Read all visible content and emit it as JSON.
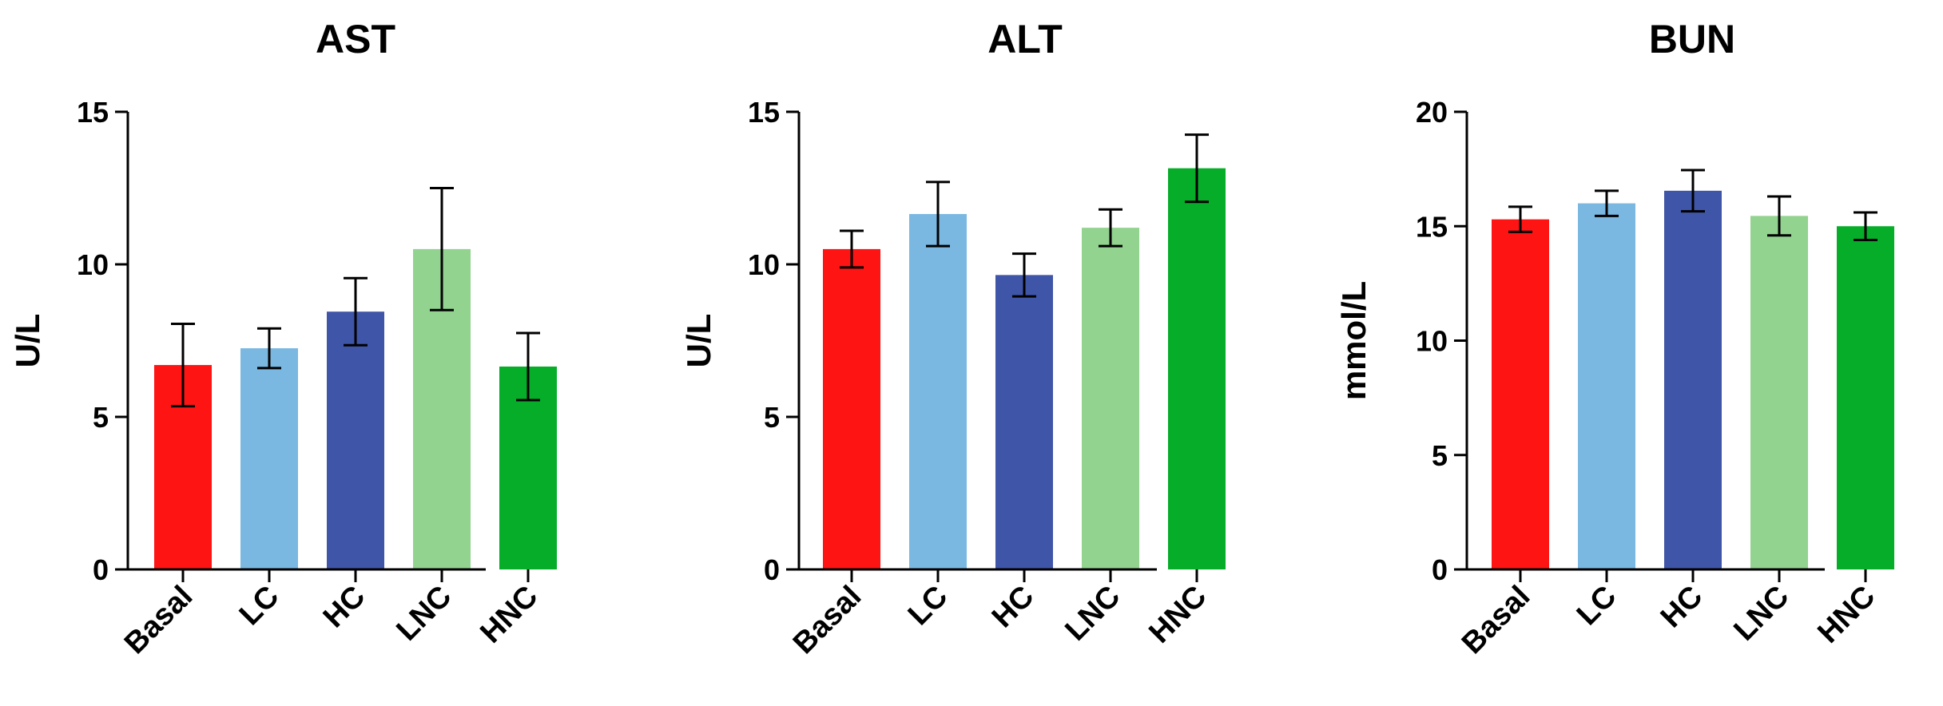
{
  "chart_data": [
    {
      "type": "bar",
      "title": "AST",
      "ylabel": "U/L",
      "xlabel": "",
      "ylim": [
        0,
        15
      ],
      "yticks": [
        0,
        5,
        10,
        15
      ],
      "categories": [
        "Basal",
        "LC",
        "HC",
        "LNC",
        "HNC"
      ],
      "values": [
        6.7,
        7.25,
        8.45,
        10.5,
        6.65
      ],
      "errors": [
        1.35,
        0.65,
        1.1,
        2.0,
        1.1
      ],
      "colors": [
        "#ff1414",
        "#7ab8e2",
        "#3f55a8",
        "#92d38f",
        "#06ad28"
      ],
      "grid": false
    },
    {
      "type": "bar",
      "title": "ALT",
      "ylabel": "U/L",
      "xlabel": "",
      "ylim": [
        0,
        15
      ],
      "yticks": [
        0,
        5,
        10,
        15
      ],
      "categories": [
        "Basal",
        "LC",
        "HC",
        "LNC",
        "HNC"
      ],
      "values": [
        10.5,
        11.65,
        9.65,
        11.2,
        13.15
      ],
      "errors": [
        0.6,
        1.05,
        0.7,
        0.6,
        1.1
      ],
      "colors": [
        "#ff1414",
        "#7ab8e2",
        "#3f55a8",
        "#92d38f",
        "#06ad28"
      ],
      "grid": false
    },
    {
      "type": "bar",
      "title": "BUN",
      "ylabel": "mmol/L",
      "xlabel": "",
      "ylim": [
        0,
        20
      ],
      "yticks": [
        0,
        5,
        10,
        15,
        20
      ],
      "categories": [
        "Basal",
        "LC",
        "HC",
        "LNC",
        "HNC"
      ],
      "values": [
        15.3,
        16.0,
        16.55,
        15.45,
        15.0
      ],
      "errors": [
        0.55,
        0.55,
        0.9,
        0.85,
        0.6
      ],
      "colors": [
        "#ff1414",
        "#7ab8e2",
        "#3f55a8",
        "#92d38f",
        "#06ad28"
      ],
      "grid": false
    }
  ]
}
